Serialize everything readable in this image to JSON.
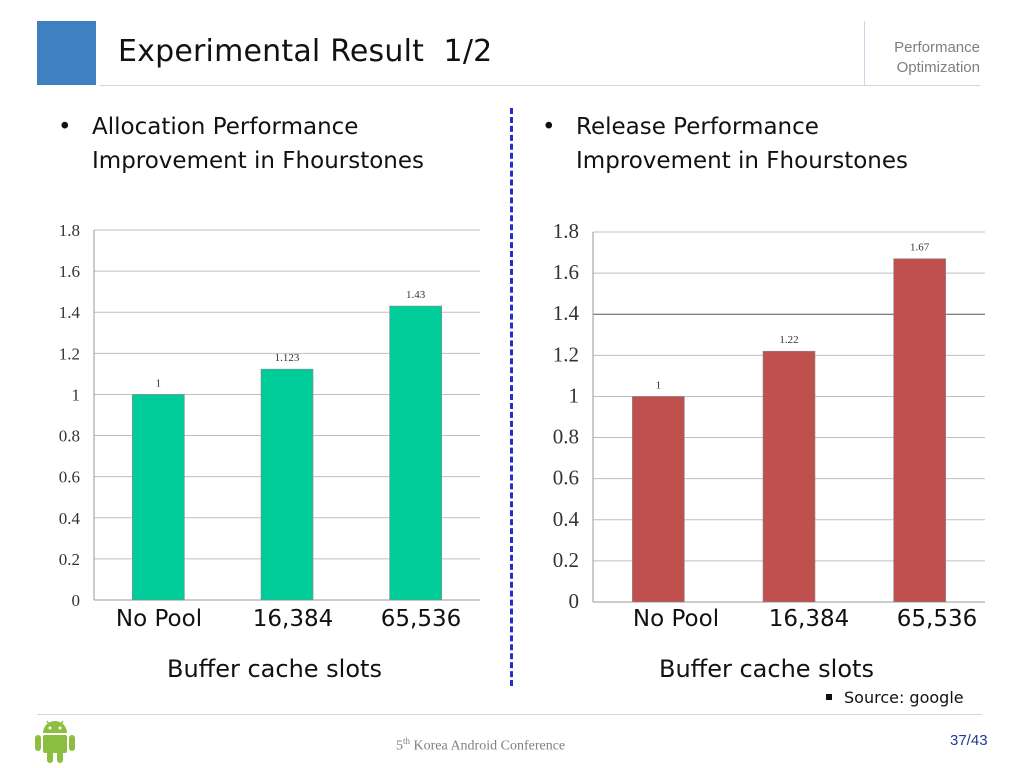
{
  "slide": {
    "title": "Experimental Result  1/2",
    "section_label_line1": "Performance",
    "section_label_line2": "Optimization",
    "left_bullet": {
      "line1": "Allocation Performance",
      "line2": "Improvement in Fhourstones"
    },
    "right_bullet": {
      "line1": "Release Performance",
      "line2": "Improvement in Fhourstones"
    },
    "source": "Source: google",
    "footer_ordinal": "5",
    "footer_ordinal_suffix": "th",
    "footer_conference": " Korea Android Conference",
    "page_number": "37/43",
    "colors": {
      "accent_square": "#3f80c1",
      "divider": "#2230c8",
      "left_bar": "#00cc99",
      "right_bar": "#c0504d",
      "page_number": "#1f3a93"
    }
  },
  "chart_data": [
    {
      "type": "bar",
      "categories": [
        "No Pool",
        "16,384",
        "65,536"
      ],
      "values": [
        1,
        1.123,
        1.43
      ],
      "value_labels": [
        "1",
        "1.123",
        "1.43"
      ],
      "ylim": [
        0,
        1.8
      ],
      "yticks": [
        "0",
        "0.2",
        "0.4",
        "0.6",
        "0.8",
        "1",
        "1.2",
        "1.4",
        "1.6",
        "1.8"
      ],
      "xlabel": "Buffer cache slots",
      "grid": true,
      "color": "#00cc99"
    },
    {
      "type": "bar",
      "categories": [
        "No Pool",
        "16,384",
        "65,536"
      ],
      "values": [
        1,
        1.22,
        1.67
      ],
      "value_labels": [
        "1",
        "1.22",
        "1.67"
      ],
      "ylim": [
        0,
        1.8
      ],
      "yticks": [
        "0",
        "0.2",
        "0.4",
        "0.6",
        "0.8",
        "1",
        "1.2",
        "1.4",
        "1.6",
        "1.8"
      ],
      "xlabel": "Buffer cache slots",
      "grid": true,
      "color": "#c0504d"
    }
  ]
}
